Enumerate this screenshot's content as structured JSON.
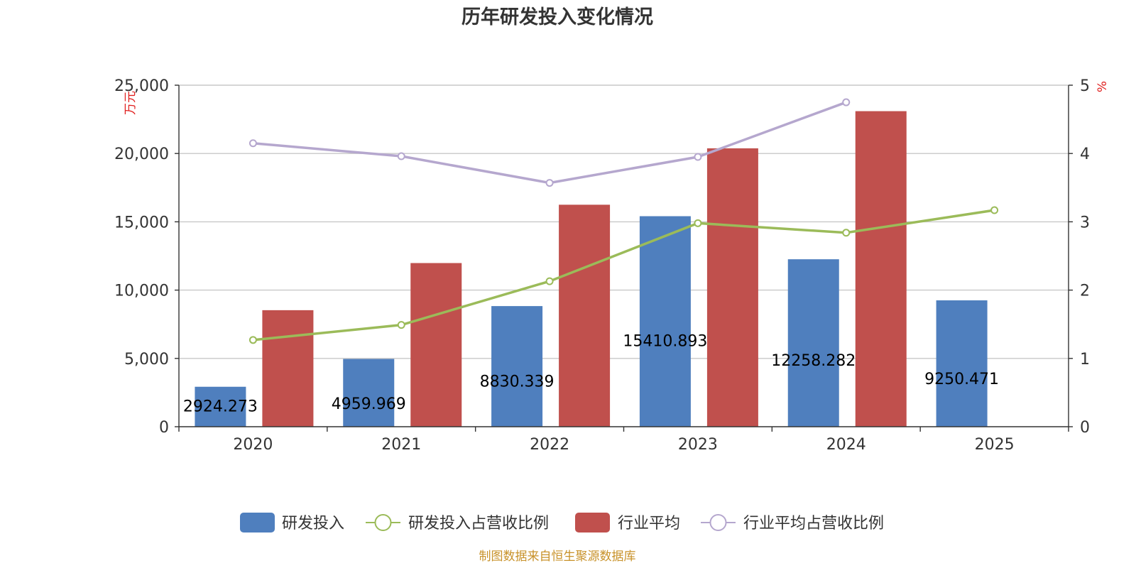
{
  "chart_data": {
    "type": "bar",
    "title": "历年研发投入变化情况",
    "categories": [
      "2020",
      "2021",
      "2022",
      "2023",
      "2024",
      "2025"
    ],
    "y_left": {
      "label": "万元",
      "ylim": [
        0,
        25000
      ],
      "ticks": [
        0,
        5000,
        10000,
        15000,
        20000,
        25000
      ],
      "tick_labels": [
        "0",
        "5,000",
        "10,000",
        "15,000",
        "20,000",
        "25,000"
      ]
    },
    "y_right": {
      "label": "%",
      "ylim": [
        0,
        5
      ],
      "ticks": [
        0,
        1,
        2,
        3,
        4,
        5
      ],
      "tick_labels": [
        "0",
        "1",
        "2",
        "3",
        "4",
        "5"
      ]
    },
    "series": [
      {
        "name": "研发投入",
        "kind": "bar",
        "axis": "left",
        "color": "#4f7fbe",
        "values": [
          2924.273,
          4959.969,
          8830.339,
          15410.893,
          12258.282,
          9250.471
        ],
        "labels": [
          "2924.273",
          "4959.969",
          "8830.339",
          "15410.893",
          "12258.282",
          "9250.471"
        ]
      },
      {
        "name": "研发投入占营收比例",
        "kind": "line",
        "axis": "right",
        "color": "#9bbb59",
        "values": [
          1.27,
          1.49,
          2.13,
          2.98,
          2.84,
          3.17
        ]
      },
      {
        "name": "行业平均",
        "kind": "bar",
        "axis": "left",
        "color": "#c0504d",
        "values": [
          8530,
          11980,
          16250,
          20380,
          23100,
          null
        ]
      },
      {
        "name": "行业平均占营收比例",
        "kind": "line",
        "axis": "right",
        "color": "#b5a7ce",
        "values": [
          4.15,
          3.96,
          3.57,
          3.95,
          4.75,
          null
        ]
      }
    ],
    "legend_position": "bottom",
    "grid": true,
    "source": "制图数据来自恒生聚源数据库"
  }
}
